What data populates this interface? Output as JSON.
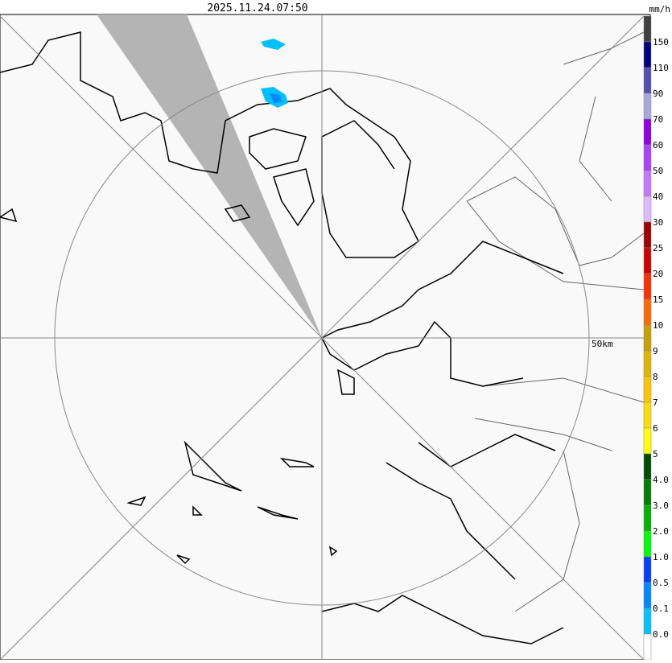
{
  "header": {
    "timestamp": "2025.11.24.07:50",
    "unit": "mm/h"
  },
  "map": {
    "range_label": "50km"
  },
  "legend": {
    "colors": [
      "#404040",
      "#000080",
      "#5050b0",
      "#a8a8e0",
      "#9000e0",
      "#b040ff",
      "#c878ff",
      "#e0b8ff",
      "#a00000",
      "#d00000",
      "#ff3000",
      "#ff6a00",
      "#c8a000",
      "#e0b400",
      "#ffc400",
      "#ffdc00",
      "#ffff00",
      "#004c00",
      "#008000",
      "#00b400",
      "#00ff00",
      "#0040ff",
      "#0088ff",
      "#00c4ff",
      "#ffffff"
    ],
    "labels": [
      "150",
      "110",
      "90",
      "70",
      "60",
      "50",
      "40",
      "30",
      "25",
      "20",
      "15",
      "10",
      "9",
      "8",
      "7",
      "6",
      "5",
      "4.0",
      "3.0",
      "2.0",
      "1.0",
      "0.5",
      "0.1",
      "0.0"
    ]
  }
}
